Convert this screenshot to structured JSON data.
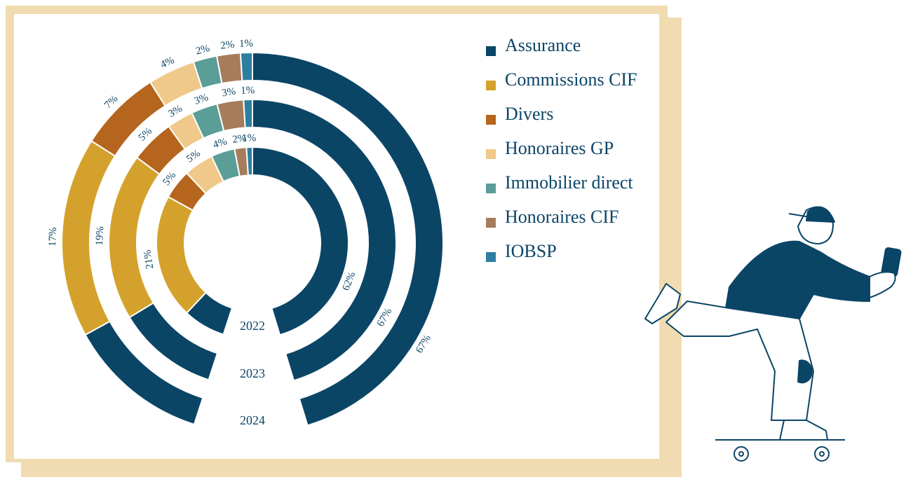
{
  "chart_data": {
    "type": "radial-stacked",
    "categories": [
      "2022",
      "2023",
      "2024"
    ],
    "series": [
      {
        "name": "Assurance",
        "color": "#0b4566",
        "values": [
          62,
          67,
          67
        ],
        "value_labels": [
          "62%",
          "67%",
          "67%"
        ]
      },
      {
        "name": "Commissions CIF",
        "color": "#d4a22c",
        "values": [
          21,
          19,
          17
        ],
        "value_labels": [
          "21%",
          "19%",
          "17%"
        ]
      },
      {
        "name": "Divers",
        "color": "#b5651d",
        "values": [
          5,
          5,
          7
        ],
        "value_labels": [
          "5%",
          "5%",
          "7%"
        ]
      },
      {
        "name": "Honoraires GP",
        "color": "#f0c98a",
        "values": [
          5,
          3,
          4
        ],
        "value_labels": [
          "5%",
          "3%",
          "4%"
        ]
      },
      {
        "name": "Immobilier direct",
        "color": "#5a9e97",
        "values": [
          4,
          3,
          2
        ],
        "value_labels": [
          "4%",
          "3%",
          "2%"
        ]
      },
      {
        "name": "Honoraires CIF",
        "color": "#a67c5b",
        "values": [
          2,
          3,
          2
        ],
        "value_labels": [
          "2%",
          "3%",
          "2%"
        ]
      },
      {
        "name": "IOBSP",
        "color": "#2e7ea0",
        "values": [
          1,
          1,
          1
        ],
        "value_labels": [
          "1%",
          "1%",
          "1%"
        ]
      }
    ]
  }
}
